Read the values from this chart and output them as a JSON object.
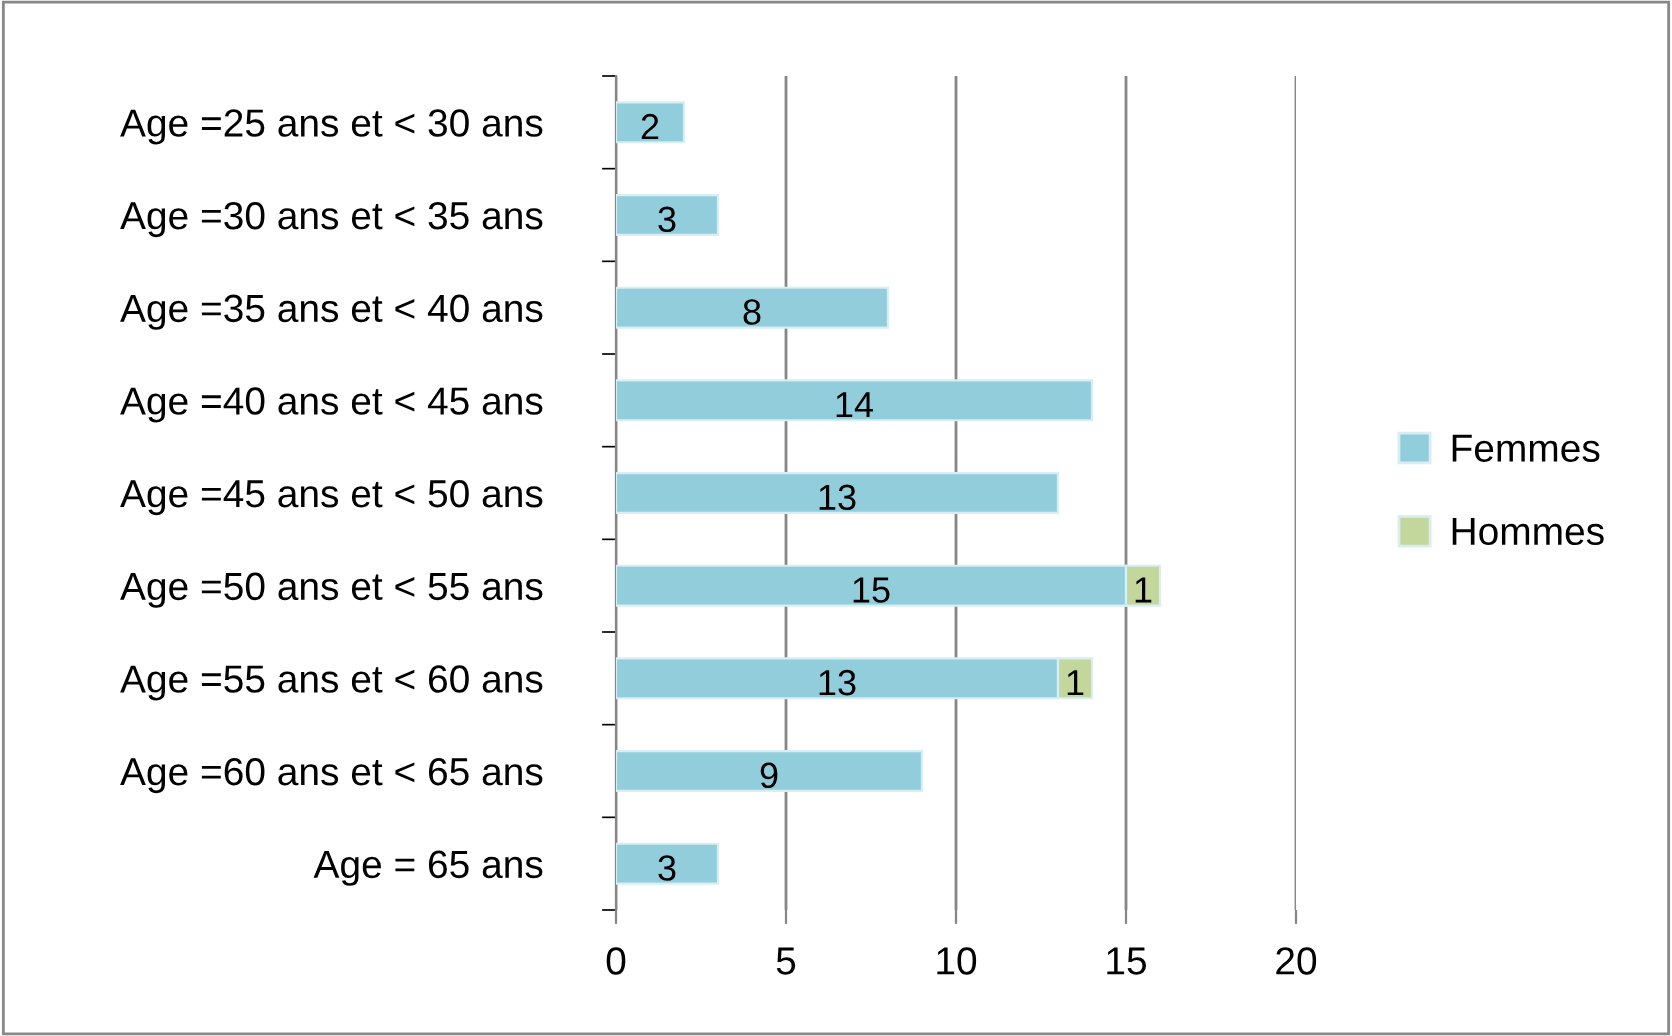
{
  "chart_data": {
    "type": "bar",
    "orientation": "horizontal",
    "stacked": true,
    "categories": [
      "Age =25 ans et < 30 ans",
      "Age =30 ans et < 35 ans",
      "Age =35 ans et < 40 ans",
      "Age =40 ans et < 45 ans",
      "Age =45 ans et < 50 ans",
      "Age =50 ans et < 55 ans",
      "Age =55 ans et < 60 ans",
      "Age =60 ans et < 65 ans",
      "Age = 65 ans"
    ],
    "series": [
      {
        "name": "Femmes",
        "color": "#92cddc",
        "values": [
          2,
          3,
          8,
          14,
          13,
          15,
          13,
          9,
          3
        ]
      },
      {
        "name": "Hommes",
        "color": "#c3d69b",
        "values": [
          null,
          null,
          null,
          null,
          null,
          1,
          1,
          null,
          null
        ]
      }
    ],
    "xlim": [
      0,
      20
    ],
    "xticks": [
      0,
      5,
      10,
      15,
      20
    ],
    "grid": "x",
    "legend": "right",
    "data_labels": true
  }
}
